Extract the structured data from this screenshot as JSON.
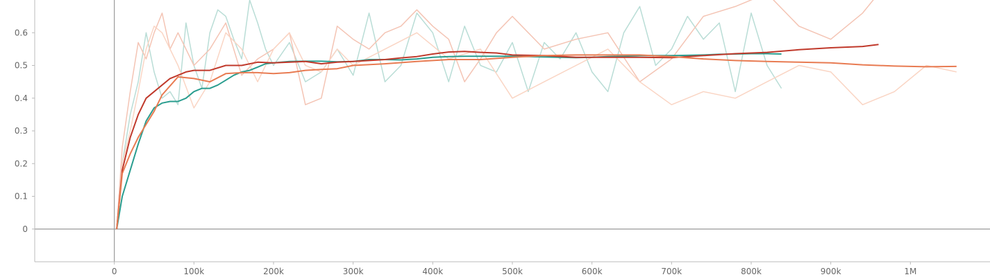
{
  "chart_data": {
    "type": "line",
    "title": "",
    "xlabel": "",
    "ylabel": "",
    "xlim": [
      -100000,
      1100000
    ],
    "ylim": [
      -0.1,
      0.7
    ],
    "x_ticks": [
      0,
      100000,
      200000,
      300000,
      400000,
      500000,
      600000,
      700000,
      800000,
      900000,
      1000000
    ],
    "x_tick_labels": [
      "0",
      "100k",
      "200k",
      "300k",
      "400k",
      "500k",
      "600k",
      "700k",
      "800k",
      "900k",
      "1M"
    ],
    "y_ticks": [
      0,
      0.1,
      0.2,
      0.3,
      0.4,
      0.5,
      0.6
    ],
    "y_tick_labels": [
      "0",
      "0.1",
      "0.2",
      "0.3",
      "0.4",
      "0.5",
      "0.6"
    ],
    "grid": false,
    "legend": "none",
    "series": [
      {
        "color": "#2a9d8f",
        "raw_color": "#b9ddd6",
        "x": [
          3000,
          10000,
          20000,
          30000,
          40000,
          50000,
          60000,
          70000,
          80000,
          90000,
          100000,
          110000,
          120000,
          130000,
          140000,
          150000,
          160000,
          170000,
          180000,
          190000,
          200000,
          220000,
          240000,
          260000,
          280000,
          300000,
          320000,
          340000,
          360000,
          380000,
          400000,
          420000,
          440000,
          460000,
          480000,
          500000,
          520000,
          540000,
          560000,
          580000,
          600000,
          620000,
          640000,
          660000,
          680000,
          700000,
          720000,
          740000,
          760000,
          780000,
          800000,
          820000,
          838000
        ],
        "smoothed": [
          0.0,
          0.1,
          0.18,
          0.26,
          0.33,
          0.37,
          0.385,
          0.39,
          0.39,
          0.4,
          0.42,
          0.43,
          0.43,
          0.44,
          0.455,
          0.47,
          0.48,
          0.485,
          0.495,
          0.505,
          0.508,
          0.512,
          0.513,
          0.513,
          0.511,
          0.512,
          0.518,
          0.518,
          0.517,
          0.52,
          0.525,
          0.527,
          0.528,
          0.528,
          0.528,
          0.528,
          0.527,
          0.526,
          0.525,
          0.524,
          0.525,
          0.527,
          0.528,
          0.53,
          0.53,
          0.53,
          0.531,
          0.532,
          0.534,
          0.535,
          0.536,
          0.536,
          0.535
        ],
        "raw": [
          0.0,
          0.2,
          0.35,
          0.45,
          0.6,
          0.48,
          0.4,
          0.42,
          0.38,
          0.63,
          0.5,
          0.43,
          0.6,
          0.67,
          0.65,
          0.58,
          0.52,
          0.7,
          0.63,
          0.55,
          0.5,
          0.57,
          0.45,
          0.48,
          0.55,
          0.47,
          0.66,
          0.45,
          0.5,
          0.66,
          0.6,
          0.45,
          0.62,
          0.5,
          0.48,
          0.57,
          0.42,
          0.57,
          0.52,
          0.6,
          0.48,
          0.42,
          0.6,
          0.68,
          0.5,
          0.55,
          0.65,
          0.58,
          0.63,
          0.42,
          0.66,
          0.5,
          0.43
        ]
      },
      {
        "color": "#c0392b",
        "raw_color": "#f4c4b4",
        "x": [
          3000,
          10000,
          20000,
          30000,
          40000,
          50000,
          60000,
          70000,
          80000,
          90000,
          100000,
          120000,
          140000,
          160000,
          180000,
          200000,
          220000,
          240000,
          260000,
          280000,
          300000,
          320000,
          340000,
          360000,
          380000,
          400000,
          420000,
          440000,
          460000,
          480000,
          500000,
          540000,
          580000,
          620000,
          660000,
          700000,
          740000,
          780000,
          820000,
          860000,
          900000,
          940000,
          960000
        ],
        "smoothed": [
          0.0,
          0.18,
          0.28,
          0.35,
          0.4,
          0.42,
          0.44,
          0.46,
          0.47,
          0.48,
          0.485,
          0.485,
          0.5,
          0.5,
          0.51,
          0.508,
          0.51,
          0.512,
          0.505,
          0.51,
          0.512,
          0.515,
          0.518,
          0.523,
          0.527,
          0.535,
          0.541,
          0.543,
          0.54,
          0.538,
          0.532,
          0.53,
          0.525,
          0.525,
          0.525,
          0.524,
          0.53,
          0.536,
          0.54,
          0.548,
          0.554,
          0.558,
          0.564
        ],
        "raw": [
          0.0,
          0.25,
          0.42,
          0.57,
          0.52,
          0.6,
          0.66,
          0.55,
          0.6,
          0.55,
          0.5,
          0.55,
          0.63,
          0.47,
          0.52,
          0.55,
          0.6,
          0.38,
          0.4,
          0.62,
          0.58,
          0.55,
          0.6,
          0.62,
          0.67,
          0.62,
          0.58,
          0.45,
          0.52,
          0.6,
          0.65,
          0.55,
          0.58,
          0.6,
          0.45,
          0.52,
          0.65,
          0.68,
          0.72,
          0.62,
          0.58,
          0.66,
          0.72
        ]
      },
      {
        "color": "#e87b52",
        "raw_color": "#fad5c4",
        "x": [
          3000,
          10000,
          20000,
          30000,
          40000,
          50000,
          60000,
          80000,
          100000,
          120000,
          140000,
          160000,
          180000,
          200000,
          220000,
          240000,
          260000,
          280000,
          300000,
          340000,
          380000,
          420000,
          460000,
          500000,
          540000,
          580000,
          620000,
          660000,
          700000,
          740000,
          780000,
          820000,
          860000,
          900000,
          940000,
          980000,
          1020000,
          1058000
        ],
        "smoothed": [
          0.0,
          0.17,
          0.23,
          0.28,
          0.32,
          0.36,
          0.41,
          0.465,
          0.46,
          0.45,
          0.475,
          0.478,
          0.478,
          0.475,
          0.478,
          0.485,
          0.488,
          0.49,
          0.5,
          0.505,
          0.512,
          0.518,
          0.518,
          0.525,
          0.53,
          0.532,
          0.532,
          0.532,
          0.527,
          0.52,
          0.515,
          0.512,
          0.51,
          0.508,
          0.502,
          0.498,
          0.496,
          0.497
        ],
        "raw": [
          0.0,
          0.2,
          0.3,
          0.42,
          0.55,
          0.62,
          0.6,
          0.5,
          0.37,
          0.45,
          0.6,
          0.55,
          0.45,
          0.55,
          0.6,
          0.5,
          0.48,
          0.55,
          0.5,
          0.55,
          0.6,
          0.52,
          0.55,
          0.4,
          0.45,
          0.5,
          0.55,
          0.45,
          0.38,
          0.42,
          0.4,
          0.45,
          0.5,
          0.48,
          0.38,
          0.42,
          0.5,
          0.48
        ]
      }
    ]
  }
}
